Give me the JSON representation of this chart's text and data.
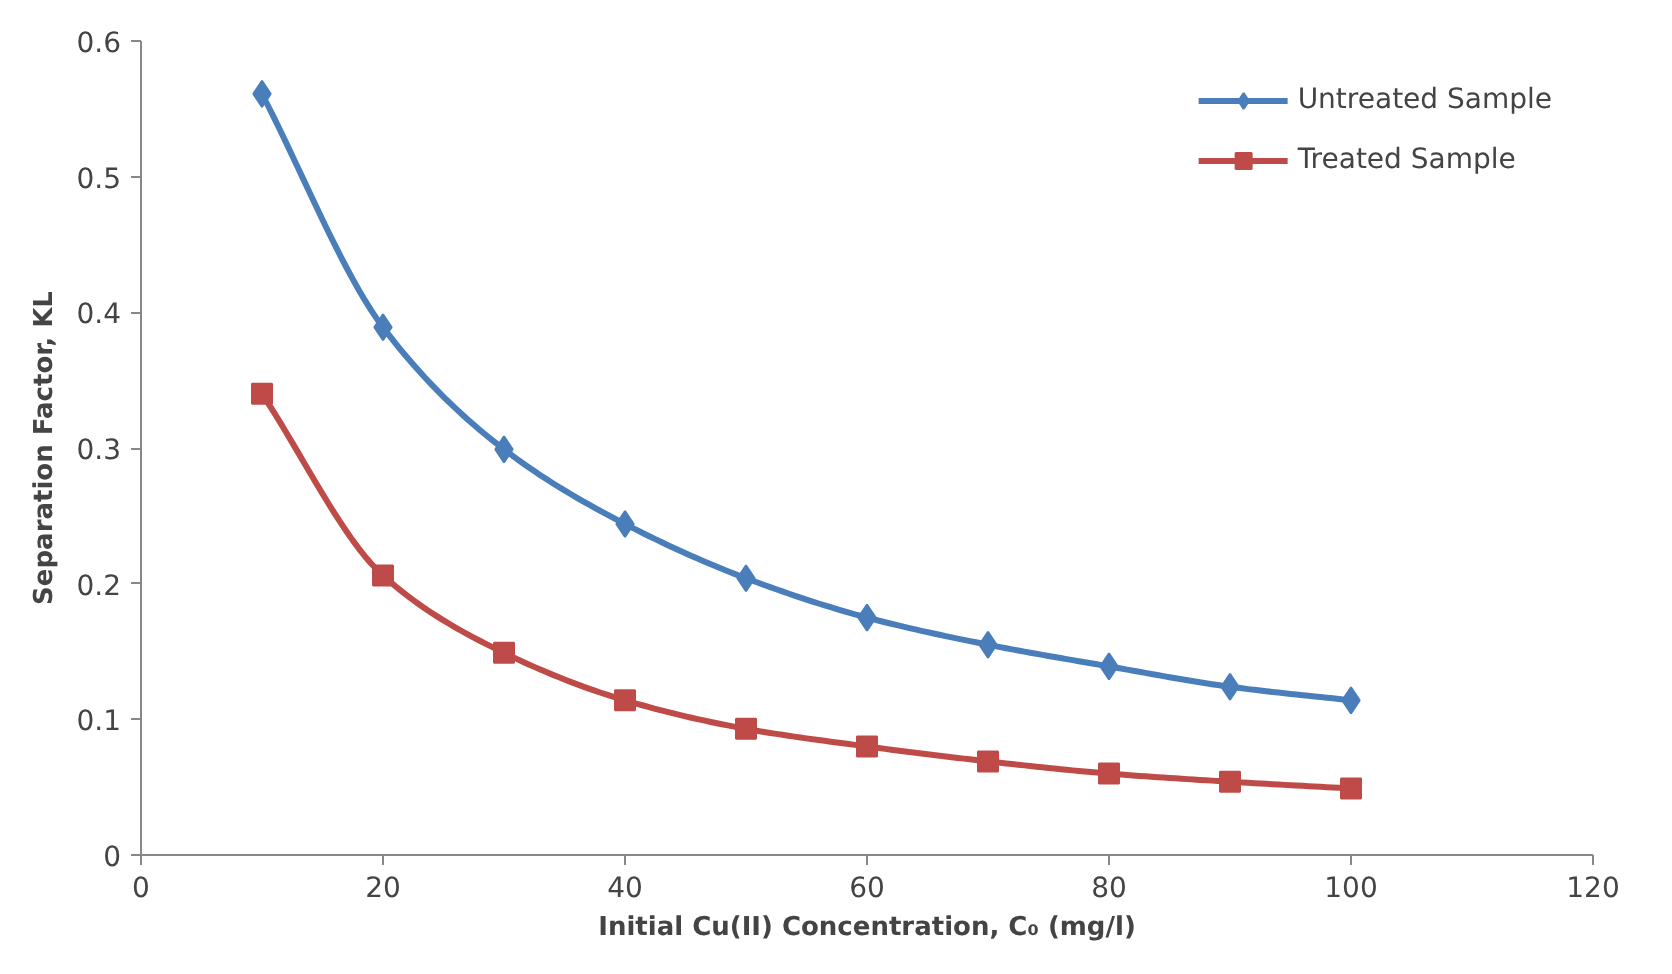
{
  "chart_data": {
    "type": "line",
    "xlabel": "Initial Cu(II) Concentration, C₀ (mg/l)",
    "ylabel": "Separation Factor, KL",
    "x": [
      10,
      20,
      30,
      40,
      50,
      60,
      70,
      80,
      90,
      100
    ],
    "series": [
      {
        "name": "Untreated Sample",
        "color": "#4a7ebb",
        "marker": "diamond",
        "values": [
          0.561,
          0.389,
          0.299,
          0.244,
          0.204,
          0.175,
          0.155,
          0.139,
          0.124,
          0.114
        ]
      },
      {
        "name": "Treated Sample",
        "color": "#be4b48",
        "marker": "square",
        "values": [
          0.34,
          0.206,
          0.149,
          0.114,
          0.093,
          0.08,
          0.069,
          0.06,
          0.054,
          0.049
        ]
      }
    ],
    "xlim": [
      0,
      120
    ],
    "xticks": [
      0,
      20,
      40,
      60,
      80,
      100,
      120
    ],
    "ylim": [
      0,
      0.6
    ],
    "yticks": [
      0,
      0.1,
      0.2,
      0.3,
      0.4,
      0.5,
      0.6
    ],
    "grid": false,
    "legend": "top right",
    "line_style": "solid"
  }
}
